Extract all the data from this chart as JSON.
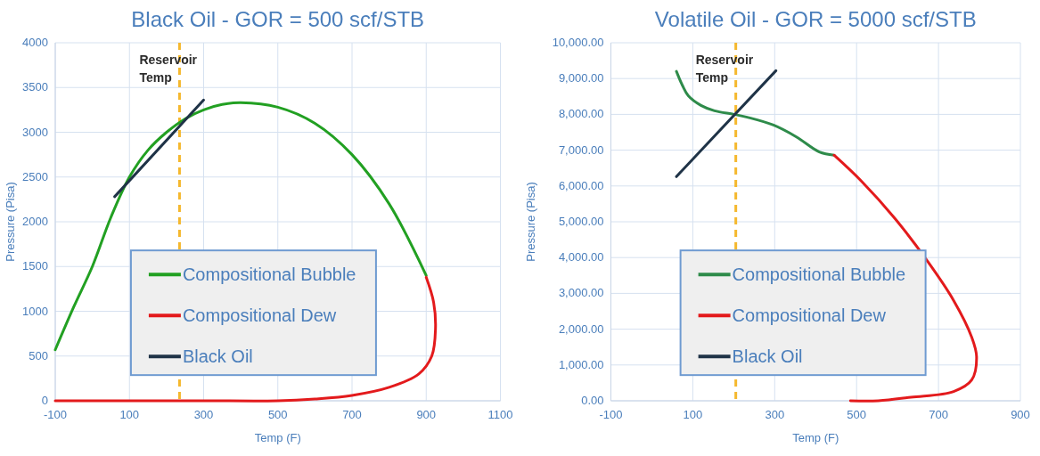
{
  "chart_data": [
    {
      "type": "line",
      "title": "Black Oil - GOR = 500 scf/STB",
      "xlabel": "Temp (F)",
      "ylabel": "Pressure (Pisa)",
      "xlim": [
        -100,
        1100
      ],
      "xticks": [
        -100,
        100,
        300,
        500,
        700,
        900,
        1100
      ],
      "ylim": [
        0,
        4000
      ],
      "yticks": [
        0,
        500,
        1000,
        1500,
        2000,
        2500,
        3000,
        3500,
        4000
      ],
      "grid": true,
      "legend": "center",
      "line_style": "solid",
      "series": [
        {
          "name": "Compositional Bubble",
          "color": "#22a022",
          "x": [
            -100,
            -50,
            0,
            50,
            100,
            150,
            200,
            250,
            300,
            350,
            400,
            500,
            600,
            700,
            800,
            900
          ],
          "values": [
            570,
            1050,
            1500,
            2050,
            2500,
            2800,
            3000,
            3150,
            3250,
            3310,
            3330,
            3280,
            3100,
            2750,
            2200,
            1400
          ]
        },
        {
          "name": "Compositional Dew",
          "color": "#e31a1c",
          "x": [
            900,
            920,
            925,
            915,
            880,
            800,
            700,
            600,
            500,
            300,
            100,
            -100
          ],
          "values": [
            1380,
            1100,
            800,
            500,
            300,
            150,
            60,
            20,
            0,
            0,
            0,
            0
          ]
        },
        {
          "name": "Black Oil",
          "color": "#1f3347",
          "x": [
            60,
            300
          ],
          "values": [
            2280,
            3360
          ]
        }
      ],
      "ref_lines": [
        {
          "axis": "x",
          "value": 235,
          "label": "Reservoir Temp",
          "color": "#f5b82e",
          "line_style": "dashed"
        }
      ]
    },
    {
      "type": "line",
      "title": "Volatile Oil - GOR = 5000 scf/STB",
      "xlabel": "Temp (F)",
      "ylabel": "Pressure (Pisa)",
      "xlim": [
        -100,
        900
      ],
      "xticks": [
        -100,
        100,
        300,
        500,
        700,
        900
      ],
      "ylim": [
        0,
        10000
      ],
      "yticks": [
        {
          "value": 0,
          "label": "0.00"
        },
        {
          "value": 1000,
          "label": "1,000.00"
        },
        {
          "value": 2000,
          "label": "2,000.00"
        },
        {
          "value": 3000,
          "label": "3,000.00"
        },
        {
          "value": 4000,
          "label": "4,000.00"
        },
        {
          "value": 5000,
          "label": "5,000.00"
        },
        {
          "value": 6000,
          "label": "6,000.00"
        },
        {
          "value": 7000,
          "label": "7,000.00"
        },
        {
          "value": 8000,
          "label": "8,000.00"
        },
        {
          "value": 9000,
          "label": "9,000.00"
        },
        {
          "value": 10000,
          "label": "10,000.00"
        }
      ],
      "grid": true,
      "legend": "center",
      "line_style": "solid",
      "series": [
        {
          "name": "Compositional Bubble",
          "color": "#2e8b4a",
          "x": [
            60,
            75,
            89,
            120,
            153,
            201,
            233,
            297,
            353,
            409,
            445
          ],
          "values": [
            9200,
            8800,
            8520,
            8250,
            8100,
            8000,
            7920,
            7700,
            7370,
            6950,
            6860
          ]
        },
        {
          "name": "Compositional Dew",
          "color": "#e31a1c",
          "x": [
            445,
            513,
            593,
            673,
            737,
            781,
            793,
            781,
            737,
            633,
            553,
            485
          ],
          "values": [
            6860,
            6120,
            5100,
            3900,
            2800,
            1780,
            1230,
            580,
            260,
            100,
            0,
            0
          ]
        },
        {
          "name": "Black Oil",
          "color": "#1f3347",
          "x": [
            60,
            303
          ],
          "values": [
            6260,
            9220
          ]
        }
      ],
      "ref_lines": [
        {
          "axis": "x",
          "value": 205,
          "label": "Reservoir Temp",
          "color": "#f5b82e",
          "line_style": "dashed"
        }
      ]
    }
  ]
}
